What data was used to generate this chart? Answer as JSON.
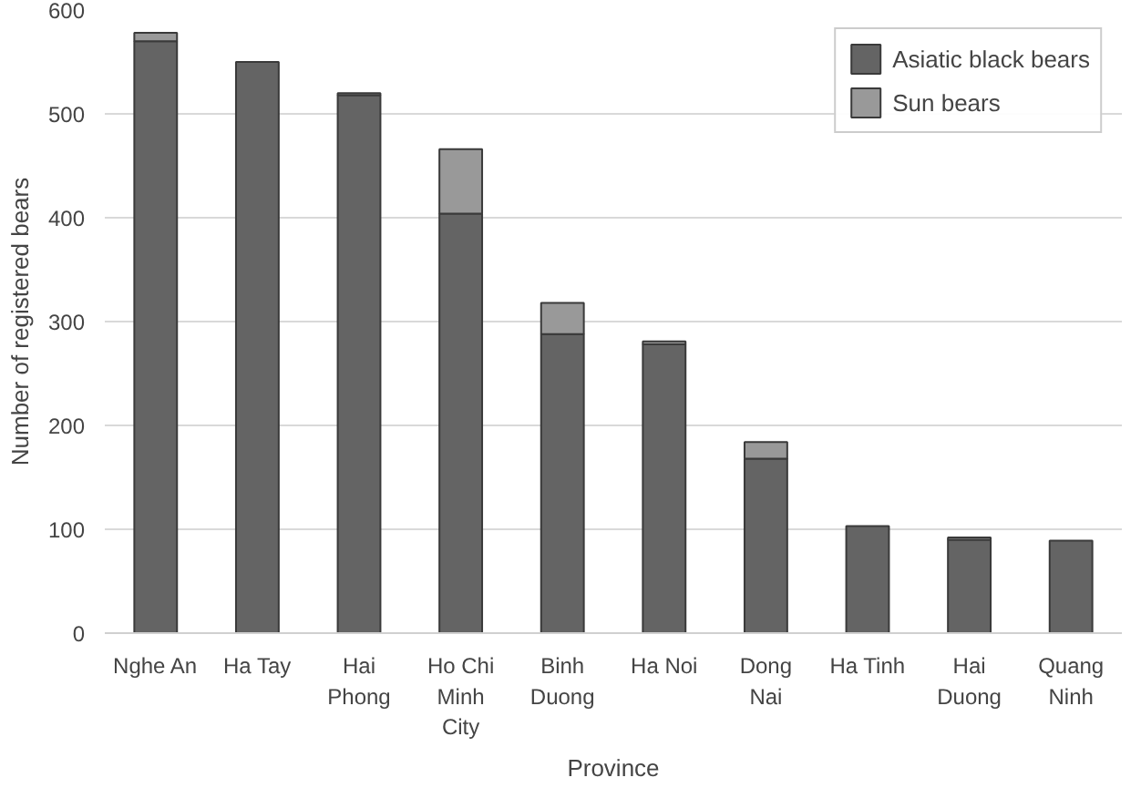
{
  "chart_data": {
    "type": "bar",
    "stacked": true,
    "xlabel": "Province",
    "ylabel": "Number of registered bears",
    "categories": [
      "Nghe An",
      "Ha Tay",
      "Hai Phong",
      "Ho Chi Minh City",
      "Binh Duong",
      "Ha Noi",
      "Dong Nai",
      "Ha Tinh",
      "Hai Duong",
      "Quang Ninh"
    ],
    "series": [
      {
        "name": "Asiatic black bears",
        "color": "#646464",
        "values": [
          570,
          550,
          518,
          404,
          288,
          278,
          168,
          103,
          90,
          89
        ]
      },
      {
        "name": "Sun bears",
        "color": "#999999",
        "values": [
          8,
          0,
          2,
          62,
          30,
          3,
          16,
          0,
          2,
          0
        ]
      }
    ],
    "ylim": [
      0,
      600
    ],
    "yticks": [
      0,
      100,
      200,
      300,
      400,
      500,
      600
    ],
    "grid": "y",
    "legend": "top right"
  }
}
